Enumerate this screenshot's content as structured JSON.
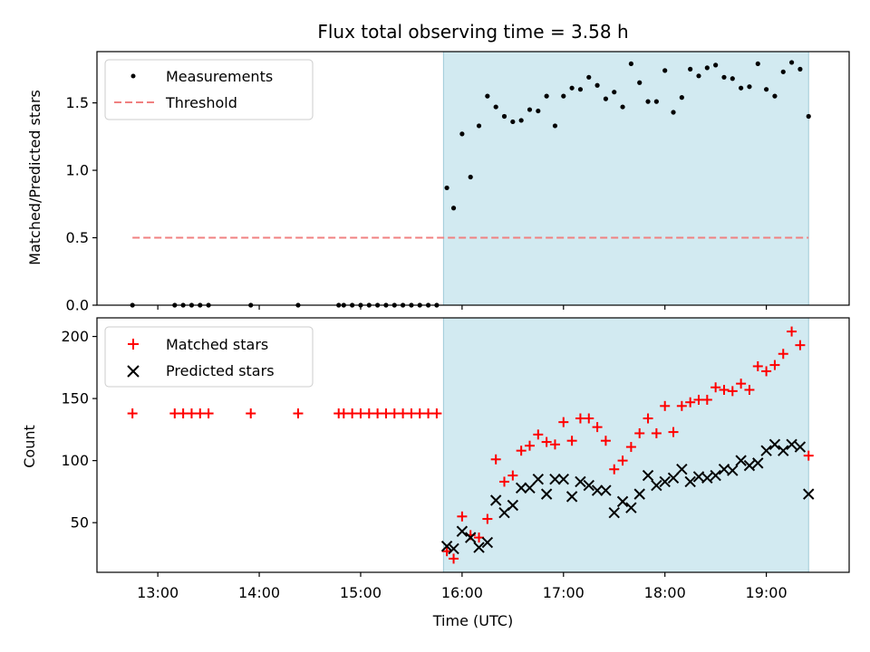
{
  "chart_data": [
    {
      "type": "scatter",
      "title": "Flux total observing time = 3.58 h",
      "xlabel": "",
      "ylabel": "Matched/Predicted stars",
      "ylim": [
        0,
        1.88
      ],
      "yticks": [
        "0.0",
        "0.5",
        "1.0",
        "1.5"
      ],
      "shaded_span": {
        "start": "15:49",
        "end": "19:25",
        "color": "#add8e6"
      },
      "threshold": {
        "name": "Threshold",
        "value": 0.5,
        "start": "12:45",
        "end": "19:25",
        "color": "#f08080"
      },
      "legend": {
        "position": "top-left",
        "entries": [
          "Measurements",
          "Threshold"
        ]
      },
      "series": [
        {
          "name": "Measurements",
          "color": "#000000",
          "x": [
            "12:45",
            "13:10",
            "13:15",
            "13:20",
            "13:25",
            "13:30",
            "13:55",
            "14:23",
            "14:47",
            "14:50",
            "14:55",
            "15:00",
            "15:05",
            "15:10",
            "15:15",
            "15:20",
            "15:25",
            "15:30",
            "15:35",
            "15:40",
            "15:45",
            "15:51",
            "15:55",
            "16:00",
            "16:05",
            "16:10",
            "16:15",
            "16:20",
            "16:25",
            "16:30",
            "16:35",
            "16:40",
            "16:45",
            "16:50",
            "16:55",
            "17:00",
            "17:05",
            "17:10",
            "17:15",
            "17:20",
            "17:25",
            "17:30",
            "17:35",
            "17:40",
            "17:45",
            "17:50",
            "17:55",
            "18:00",
            "18:05",
            "18:10",
            "18:15",
            "18:20",
            "18:25",
            "18:30",
            "18:35",
            "18:40",
            "18:45",
            "18:50",
            "18:55",
            "19:00",
            "19:05",
            "19:10",
            "19:15",
            "19:20",
            "19:25"
          ],
          "y": [
            0,
            0,
            0,
            0,
            0,
            0,
            0,
            0,
            0,
            0,
            0,
            0,
            0,
            0,
            0,
            0,
            0,
            0,
            0,
            0,
            0,
            0.87,
            0.72,
            1.27,
            0.95,
            1.33,
            1.55,
            1.47,
            1.4,
            1.36,
            1.37,
            1.45,
            1.44,
            1.55,
            1.33,
            1.55,
            1.61,
            1.6,
            1.69,
            1.63,
            1.53,
            1.58,
            1.47,
            1.79,
            1.65,
            1.51,
            1.51,
            1.74,
            1.43,
            1.54,
            1.75,
            1.7,
            1.76,
            1.78,
            1.69,
            1.68,
            1.61,
            1.62,
            1.79,
            1.6,
            1.55,
            1.73,
            1.8,
            1.75,
            1.4
          ]
        }
      ]
    },
    {
      "type": "scatter",
      "title": "",
      "xlabel": "Time (UTC)",
      "ylabel": "Count",
      "ylim": [
        10,
        215
      ],
      "yticks": [
        "50",
        "100",
        "150",
        "200"
      ],
      "xticks": [
        "13:00",
        "14:00",
        "15:00",
        "16:00",
        "17:00",
        "18:00",
        "19:00"
      ],
      "shaded_span": {
        "start": "15:49",
        "end": "19:25",
        "color": "#add8e6"
      },
      "legend": {
        "position": "top-left",
        "entries": [
          "Matched stars",
          "Predicted stars"
        ]
      },
      "series": [
        {
          "name": "Matched stars",
          "color": "#ff0000",
          "x": [
            "12:45",
            "13:10",
            "13:15",
            "13:20",
            "13:25",
            "13:30",
            "13:55",
            "14:23",
            "14:47",
            "14:50",
            "14:55",
            "15:00",
            "15:05",
            "15:10",
            "15:15",
            "15:20",
            "15:25",
            "15:30",
            "15:35",
            "15:40",
            "15:45",
            "15:51",
            "15:55",
            "16:00",
            "16:05",
            "16:10",
            "16:15",
            "16:20",
            "16:25",
            "16:30",
            "16:35",
            "16:40",
            "16:45",
            "16:50",
            "16:55",
            "17:00",
            "17:05",
            "17:10",
            "17:15",
            "17:20",
            "17:25",
            "17:30",
            "17:35",
            "17:40",
            "17:45",
            "17:50",
            "17:55",
            "18:00",
            "18:05",
            "18:10",
            "18:15",
            "18:20",
            "18:25",
            "18:30",
            "18:35",
            "18:40",
            "18:45",
            "18:50",
            "18:55",
            "19:00",
            "19:05",
            "19:10",
            "19:15",
            "19:20",
            "19:25"
          ],
          "y": [
            138,
            138,
            138,
            138,
            138,
            138,
            138,
            138,
            138,
            138,
            138,
            138,
            138,
            138,
            138,
            138,
            138,
            138,
            138,
            138,
            138,
            27,
            21,
            55,
            40,
            38,
            53,
            101,
            83,
            88,
            108,
            112,
            121,
            115,
            113,
            131,
            116,
            134,
            134,
            127,
            116,
            93,
            100,
            111,
            122,
            134,
            122,
            144,
            123,
            144,
            147,
            149,
            149,
            159,
            157,
            156,
            162,
            157,
            176,
            172,
            177,
            186,
            204,
            193,
            104
          ]
        },
        {
          "name": "Predicted stars",
          "color": "#000000",
          "x": [
            "15:51",
            "15:55",
            "16:00",
            "16:05",
            "16:10",
            "16:15",
            "16:20",
            "16:25",
            "16:30",
            "16:35",
            "16:40",
            "16:45",
            "16:50",
            "16:55",
            "17:00",
            "17:05",
            "17:10",
            "17:15",
            "17:20",
            "17:25",
            "17:30",
            "17:35",
            "17:40",
            "17:45",
            "17:50",
            "17:55",
            "18:00",
            "18:05",
            "18:10",
            "18:15",
            "18:20",
            "18:25",
            "18:30",
            "18:35",
            "18:40",
            "18:45",
            "18:50",
            "18:55",
            "19:00",
            "19:05",
            "19:10",
            "19:15",
            "19:20",
            "19:25"
          ],
          "y": [
            31,
            29,
            43,
            38,
            30,
            34,
            68,
            58,
            64,
            78,
            78,
            85,
            73,
            85,
            85,
            71,
            83,
            80,
            76,
            76,
            58,
            67,
            62,
            73,
            88,
            80,
            83,
            86,
            93,
            83,
            87,
            86,
            88,
            93,
            92,
            100,
            96,
            98,
            108,
            113,
            108,
            113,
            111,
            73
          ]
        }
      ]
    }
  ]
}
